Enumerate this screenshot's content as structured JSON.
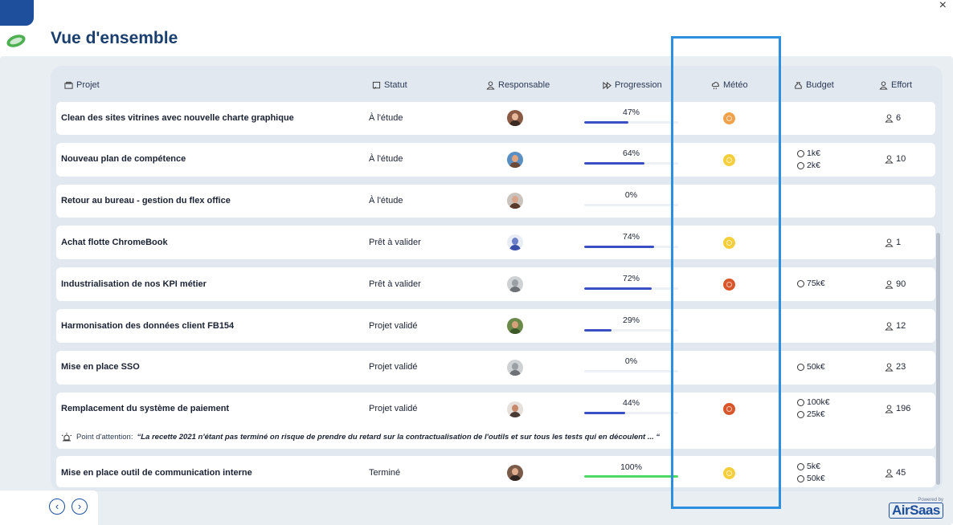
{
  "page": {
    "title": "Vue d'ensemble"
  },
  "colors": {
    "accent": "#1d4f9c",
    "progress": "#3b4fc4",
    "progress_done": "#4cd964",
    "highlight": "#2d8fe0"
  },
  "columns": {
    "projet": "Projet",
    "statut": "Statut",
    "responsable": "Responsable",
    "progression": "Progression",
    "meteo": "Météo",
    "budget": "Budget",
    "effort": "Effort"
  },
  "rows": [
    {
      "name": "Clean des sites vitrines avec nouvelle charte graphique",
      "status": "À l'étude",
      "progress_label": "47%",
      "progress": 0.47,
      "meteo": "orange-light",
      "budget": [],
      "effort": "6"
    },
    {
      "name": "Nouveau plan de compétence",
      "status": "À l'étude",
      "progress_label": "64%",
      "progress": 0.64,
      "meteo": "yellow",
      "budget": [
        "1k€",
        "2k€"
      ],
      "effort": "10"
    },
    {
      "name": "Retour au bureau - gestion du flex office",
      "status": "À l'étude",
      "progress_label": "0%",
      "progress": 0,
      "meteo": "",
      "budget": [],
      "effort": ""
    },
    {
      "name": "Achat flotte ChromeBook",
      "status": "Prêt à valider",
      "progress_label": "74%",
      "progress": 0.74,
      "meteo": "yellow",
      "budget": [],
      "effort": "1"
    },
    {
      "name": "Industrialisation de nos KPI métier",
      "status": "Prêt à valider",
      "progress_label": "72%",
      "progress": 0.72,
      "meteo": "red",
      "budget": [
        "75k€"
      ],
      "effort": "90"
    },
    {
      "name": "Harmonisation des données client FB154",
      "status": "Projet validé",
      "progress_label": "29%",
      "progress": 0.29,
      "meteo": "",
      "budget": [],
      "effort": "12"
    },
    {
      "name": "Mise en place SSO",
      "status": "Projet validé",
      "progress_label": "0%",
      "progress": 0,
      "meteo": "",
      "budget": [
        "50k€"
      ],
      "effort": "23"
    },
    {
      "name": "Remplacement du système de paiement",
      "status": "Projet validé",
      "progress_label": "44%",
      "progress": 0.44,
      "meteo": "red",
      "budget": [
        "100k€",
        "25k€"
      ],
      "effort": "196",
      "attention_label": "Point d'attention:",
      "attention_text": "“La recette 2021 n'étant pas terminé on risque de prendre du retard sur la contractualisation de l'outils et sur tous les tests qui en découlent ... “"
    },
    {
      "name": "Mise en place outil de communication interne",
      "status": "Terminé",
      "progress_label": "100%",
      "progress": 1,
      "meteo": "yellow",
      "budget": [
        "5k€",
        "50k€"
      ],
      "effort": "45"
    }
  ],
  "pager": {
    "prev": "‹",
    "next": "›"
  },
  "brand": {
    "powered": "Powered by",
    "name": "AirSaas"
  }
}
